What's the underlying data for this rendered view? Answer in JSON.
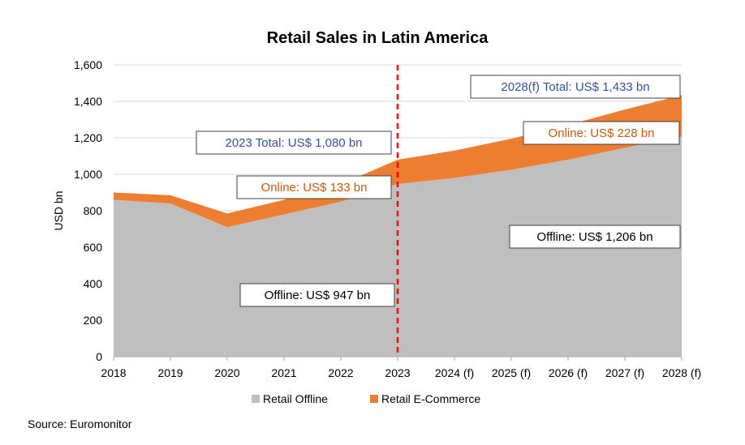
{
  "chart_data": {
    "type": "area",
    "title": "Retail Sales in Latin America",
    "ylabel": "USD bn",
    "ylim": [
      0,
      1600
    ],
    "yticks": [
      "0",
      "200",
      "400",
      "600",
      "800",
      "1,000",
      "1,200",
      "1,400",
      "1,600"
    ],
    "categories": [
      "2018",
      "2019",
      "2020",
      "2021",
      "2022",
      "2023",
      "2024 (f)",
      "2025 (f)",
      "2026 (f)",
      "2027 (f)",
      "2028 (f)"
    ],
    "stacked": true,
    "series": [
      {
        "name": "Retail Offline",
        "color": "#bfbfbf",
        "values": [
          860,
          840,
          710,
          780,
          850,
          947,
          980,
          1025,
          1080,
          1145,
          1206
        ]
      },
      {
        "name": "Retail E-Commerce",
        "color": "#ed7d31",
        "values": [
          40,
          45,
          75,
          80,
          95,
          133,
          150,
          170,
          190,
          210,
          228
        ]
      }
    ],
    "divider": {
      "at": "2023",
      "color": "#ff0000",
      "style": "dashed"
    },
    "annotations": [
      {
        "text": "2023 Total: US$ 1,080 bn",
        "color": "#2f5597"
      },
      {
        "text": "Online: US$ 133 bn",
        "color": "#c55a11"
      },
      {
        "text": "Offline: US$ 947 bn",
        "color": "#000000"
      },
      {
        "text": "2028(f) Total: US$ 1,433 bn",
        "color": "#2f5597"
      },
      {
        "text": "Online: US$ 228 bn",
        "color": "#c55a11"
      },
      {
        "text": "Offline: US$ 1,206 bn",
        "color": "#000000"
      }
    ],
    "legend_position": "bottom",
    "grid": true,
    "source": "Source: Euromonitor"
  }
}
